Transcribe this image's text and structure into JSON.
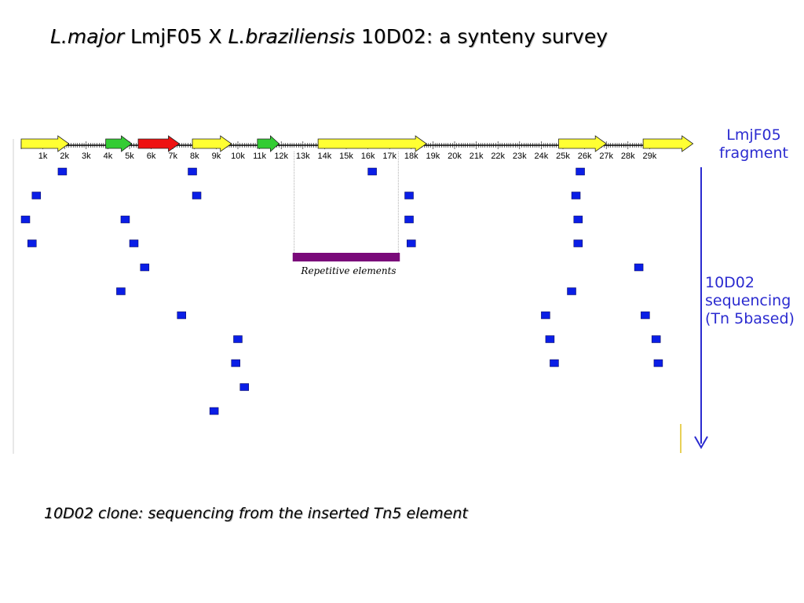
{
  "title": {
    "part1_italic": "L.major",
    "part2": " LmjF05 X ",
    "part3_italic": "L.braziliensis",
    "part4": " 10D02: a synteny survey"
  },
  "fragment_label": [
    "LmjF05",
    "fragment"
  ],
  "sequencing_label": [
    "10D02",
    "sequencing",
    "(Tn 5based)"
  ],
  "repetitive_label": "Repetitive elements",
  "caption": "10D02 clone: sequencing from the inserted Tn5 element",
  "colors": {
    "yellow": "#ffff33",
    "green": "#33cc33",
    "red": "#ee1111",
    "blue": "#0a1ee6",
    "purple": "#7a0a7a",
    "arrow": "#2b2bd0"
  },
  "scale": {
    "tick_labels": [
      "1k",
      "2k",
      "3k",
      "4k",
      "5k",
      "6k",
      "7k",
      "8k",
      "9k",
      "10k",
      "11k",
      "12k",
      "13k",
      "14k",
      "15k",
      "16k",
      "17k",
      "18k",
      "19k",
      "20k",
      "21k",
      "22k",
      "23k",
      "24k",
      "25k",
      "26k",
      "27k",
      "28k",
      "29k"
    ]
  },
  "genes": [
    {
      "start": 0.0,
      "end": 2.2,
      "color": "yellow"
    },
    {
      "start": 3.9,
      "end": 5.1,
      "color": "green"
    },
    {
      "start": 5.4,
      "end": 7.3,
      "color": "red"
    },
    {
      "start": 7.9,
      "end": 9.7,
      "color": "yellow"
    },
    {
      "start": 10.9,
      "end": 11.9,
      "color": "green"
    },
    {
      "start": 13.7,
      "end": 18.7,
      "color": "yellow"
    },
    {
      "start": 24.8,
      "end": 27.0,
      "color": "yellow"
    },
    {
      "start": 28.7,
      "end": 31.0,
      "color": "yellow"
    }
  ],
  "repetitive_region": {
    "start": 12.6,
    "end": 17.4
  },
  "reads": [
    {
      "pos": 1.7,
      "row": 0
    },
    {
      "pos": 7.7,
      "row": 0
    },
    {
      "pos": 16.0,
      "row": 0
    },
    {
      "pos": 25.6,
      "row": 0
    },
    {
      "pos": 0.5,
      "row": 1
    },
    {
      "pos": 7.9,
      "row": 1
    },
    {
      "pos": 17.7,
      "row": 1
    },
    {
      "pos": 25.4,
      "row": 1
    },
    {
      "pos": 0.0,
      "row": 2
    },
    {
      "pos": 4.6,
      "row": 2
    },
    {
      "pos": 17.7,
      "row": 2
    },
    {
      "pos": 25.5,
      "row": 2
    },
    {
      "pos": 0.3,
      "row": 3
    },
    {
      "pos": 5.0,
      "row": 3
    },
    {
      "pos": 17.8,
      "row": 3
    },
    {
      "pos": 25.5,
      "row": 3
    },
    {
      "pos": 5.5,
      "row": 4
    },
    {
      "pos": 28.3,
      "row": 4
    },
    {
      "pos": 4.4,
      "row": 5
    },
    {
      "pos": 25.2,
      "row": 5
    },
    {
      "pos": 7.2,
      "row": 6
    },
    {
      "pos": 24.0,
      "row": 6
    },
    {
      "pos": 28.6,
      "row": 6
    },
    {
      "pos": 9.8,
      "row": 7
    },
    {
      "pos": 24.2,
      "row": 7
    },
    {
      "pos": 29.1,
      "row": 7
    },
    {
      "pos": 9.7,
      "row": 8
    },
    {
      "pos": 24.4,
      "row": 8
    },
    {
      "pos": 29.2,
      "row": 8
    },
    {
      "pos": 10.1,
      "row": 9
    },
    {
      "pos": 8.7,
      "row": 10
    }
  ]
}
